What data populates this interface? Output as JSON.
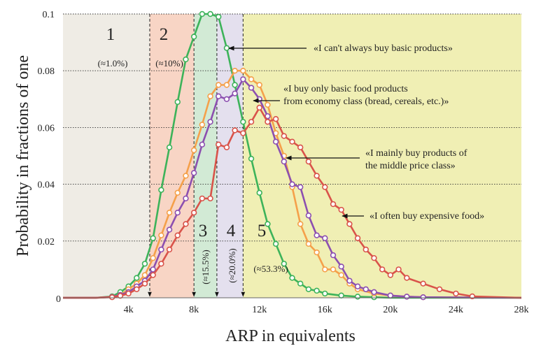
{
  "chart_data": {
    "type": "line",
    "xlabel": "ARP in equivalents",
    "ylabel": "Probability in fractions of one",
    "xlim": [
      0,
      28000
    ],
    "ylim": [
      0,
      0.1
    ],
    "x_ticks": [
      {
        "value": 4000,
        "label": "4k"
      },
      {
        "value": 8000,
        "label": "8k"
      },
      {
        "value": 12000,
        "label": "12k"
      },
      {
        "value": 16000,
        "label": "16k"
      },
      {
        "value": 20000,
        "label": "20k"
      },
      {
        "value": 24000,
        "label": "24k"
      },
      {
        "value": 28000,
        "label": "28k"
      }
    ],
    "y_ticks": [
      {
        "value": 0,
        "label": "0"
      },
      {
        "value": 0.02,
        "label": "0.02"
      },
      {
        "value": 0.04,
        "label": "0.04"
      },
      {
        "value": 0.06,
        "label": "0.06"
      },
      {
        "value": 0.08,
        "label": "0.08"
      },
      {
        "value": 0.1,
        "label": "0.1"
      }
    ],
    "grid": "horizontal dotted",
    "regions": [
      {
        "from": 0,
        "to": 5300,
        "color": "#efece5",
        "number": "1",
        "share": "(≈1.0%)"
      },
      {
        "from": 5300,
        "to": 8000,
        "color": "#f8d5c5",
        "number": "2",
        "share": "(≈10%)"
      },
      {
        "from": 8000,
        "to": 9400,
        "color": "#d2ead5",
        "number": "3",
        "share": "(≈15.5%)"
      },
      {
        "from": 9400,
        "to": 11000,
        "color": "#e4e0ee",
        "number": "4",
        "share": "(≈20.0%)"
      },
      {
        "from": 11000,
        "to": 28000,
        "color": "#f0efb4",
        "number": "5",
        "share": "(≈53.3%)"
      }
    ],
    "annotations": [
      {
        "text": "«I can't always buy basic products»",
        "series": 0
      },
      {
        "text": "«I buy only basic food products from economy class (bread, cereals, etc.)»",
        "series": 1
      },
      {
        "text": "«I mainly buy products of the middle price class»",
        "series": 2
      },
      {
        "text": "«I often buy expensive food»",
        "series": 3
      }
    ],
    "series": [
      {
        "color": "#3db35a",
        "x": [
          0,
          1000,
          2000,
          3000,
          3500,
          4000,
          4500,
          5000,
          5500,
          6000,
          6500,
          7000,
          7500,
          8000,
          8500,
          9000,
          9500,
          10000,
          10500,
          11000,
          11500,
          12000,
          12500,
          13000,
          13500,
          14000,
          14500,
          15000,
          15500,
          16000,
          17000,
          18000,
          19000,
          20000,
          28000
        ],
        "values": [
          0,
          0,
          0,
          0.0005,
          0.002,
          0.004,
          0.007,
          0.012,
          0.021,
          0.038,
          0.053,
          0.069,
          0.084,
          0.092,
          0.1,
          0.1,
          0.099,
          0.088,
          0.075,
          0.062,
          0.049,
          0.037,
          0.026,
          0.019,
          0.012,
          0.007,
          0.005,
          0.003,
          0.0025,
          0.0015,
          0.0008,
          0.0004,
          0.0002,
          0,
          0
        ]
      },
      {
        "color": "#f5a04a",
        "x": [
          0,
          1000,
          2000,
          3000,
          3500,
          4000,
          4500,
          5000,
          5500,
          6000,
          6500,
          7000,
          7500,
          8000,
          8500,
          9000,
          9500,
          10000,
          10500,
          11000,
          11500,
          12000,
          12500,
          13000,
          13500,
          14000,
          14500,
          15000,
          15500,
          16000,
          16500,
          17000,
          17500,
          18000,
          19000,
          20000,
          21000,
          22000,
          28000
        ],
        "values": [
          0,
          0,
          0,
          0.0003,
          0.001,
          0.003,
          0.005,
          0.008,
          0.014,
          0.022,
          0.03,
          0.037,
          0.043,
          0.052,
          0.061,
          0.071,
          0.075,
          0.075,
          0.08,
          0.08,
          0.077,
          0.075,
          0.068,
          0.058,
          0.05,
          0.039,
          0.026,
          0.019,
          0.016,
          0.01,
          0.01,
          0.008,
          0.005,
          0.003,
          0.0015,
          0.0008,
          0.0004,
          0.0002,
          0
        ]
      },
      {
        "color": "#8c4fb0",
        "x": [
          0,
          1000,
          2000,
          3000,
          3500,
          4000,
          4500,
          5000,
          5500,
          6000,
          6500,
          7000,
          7500,
          8000,
          8500,
          9000,
          9500,
          10000,
          10500,
          11000,
          11500,
          12000,
          12500,
          13000,
          13500,
          14000,
          14500,
          15000,
          15500,
          16000,
          16500,
          17000,
          17500,
          18000,
          18500,
          19000,
          20000,
          21000,
          22000,
          28000
        ],
        "values": [
          0,
          0,
          0,
          0.0003,
          0.001,
          0.002,
          0.004,
          0.006,
          0.01,
          0.017,
          0.024,
          0.03,
          0.035,
          0.044,
          0.054,
          0.062,
          0.071,
          0.07,
          0.072,
          0.077,
          0.074,
          0.07,
          0.064,
          0.055,
          0.048,
          0.04,
          0.039,
          0.029,
          0.022,
          0.021,
          0.015,
          0.011,
          0.006,
          0.004,
          0.003,
          0.002,
          0.0008,
          0.0004,
          0.0002,
          0
        ]
      },
      {
        "color": "#d9534a",
        "x": [
          0,
          1000,
          2000,
          3000,
          3500,
          4000,
          4500,
          5000,
          5500,
          6000,
          6500,
          7000,
          7500,
          8000,
          8500,
          9000,
          9500,
          10000,
          10500,
          11000,
          11500,
          12000,
          12500,
          13000,
          13500,
          14000,
          14500,
          15000,
          15500,
          16000,
          16500,
          17000,
          17500,
          18000,
          18500,
          19000,
          19500,
          20000,
          20500,
          21000,
          22000,
          23000,
          24000,
          25000,
          28000
        ],
        "values": [
          0,
          0,
          0,
          0.0002,
          0.0007,
          0.0015,
          0.003,
          0.005,
          0.008,
          0.012,
          0.017,
          0.022,
          0.026,
          0.03,
          0.035,
          0.035,
          0.054,
          0.053,
          0.059,
          0.058,
          0.062,
          0.067,
          0.062,
          0.063,
          0.057,
          0.055,
          0.053,
          0.048,
          0.043,
          0.039,
          0.033,
          0.031,
          0.026,
          0.021,
          0.017,
          0.014,
          0.01,
          0.008,
          0.01,
          0.007,
          0.005,
          0.003,
          0.0015,
          0.0005,
          0
        ]
      }
    ]
  }
}
